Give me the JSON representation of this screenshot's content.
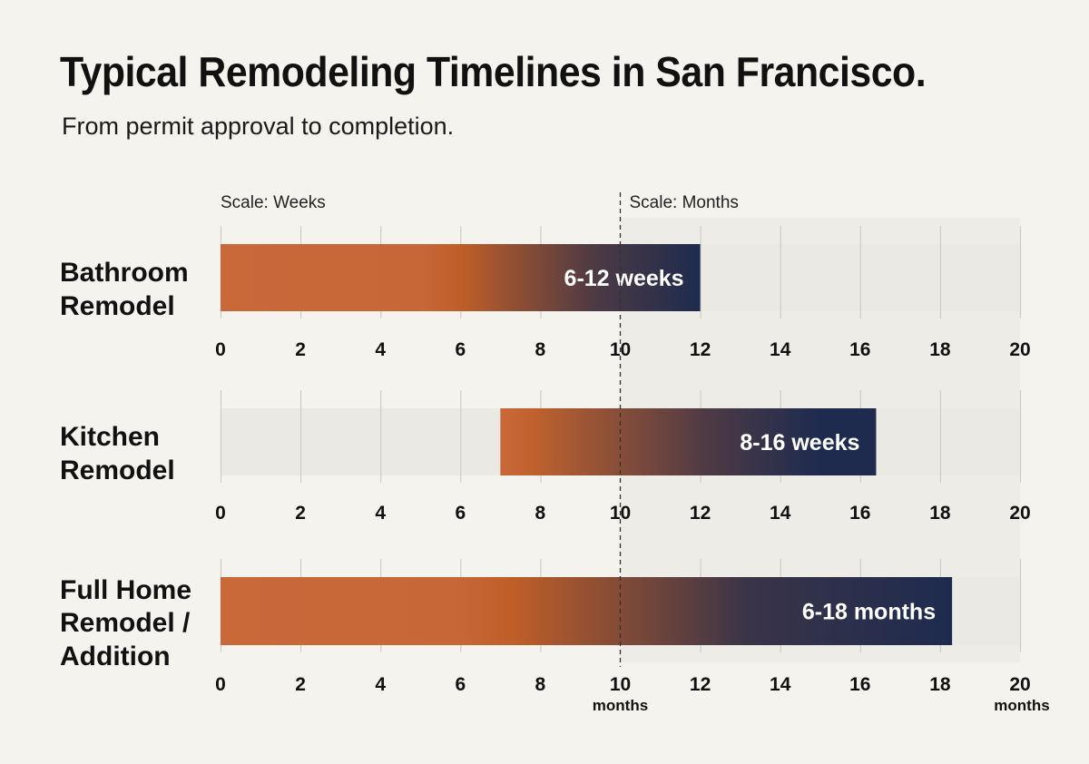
{
  "header": {
    "title": "Typical Remodeling Timelines in San Francisco.",
    "subtitle": "From permit approval to completion."
  },
  "chart_data": {
    "type": "bar",
    "orientation": "horizontal",
    "title": "Typical Remodeling Timelines in San Francisco.",
    "subtitle": "From permit approval to completion.",
    "scale_labels": [
      "Scale: Weeks",
      "Scale: Months"
    ],
    "scale_break_at": 10,
    "xlim": [
      0,
      20
    ],
    "ticks": [
      0,
      2,
      4,
      6,
      8,
      10,
      12,
      14,
      16,
      18,
      20
    ],
    "tick_units": [
      {
        "at": 10,
        "label": "months"
      },
      {
        "at": 20,
        "label": "months"
      }
    ],
    "grid": true,
    "categories": [
      {
        "label": [
          "Bathroom",
          "Remodel"
        ],
        "start": 0,
        "end": 12,
        "text": "6-12 weeks"
      },
      {
        "label": [
          "Kitchen",
          "Remodel"
        ],
        "start": 7,
        "end": 16.4,
        "text": "8-16 weeks"
      },
      {
        "label": [
          "Full Home",
          "Remodel /",
          "Addition"
        ],
        "start": 0,
        "end": 18.3,
        "text": "6-18 months"
      }
    ],
    "colors": {
      "start": "#c9693a",
      "mid": "#c0622a",
      "end": "#1e2b4f",
      "grid": "#cfccc5",
      "track": "#ebe9e4"
    }
  }
}
